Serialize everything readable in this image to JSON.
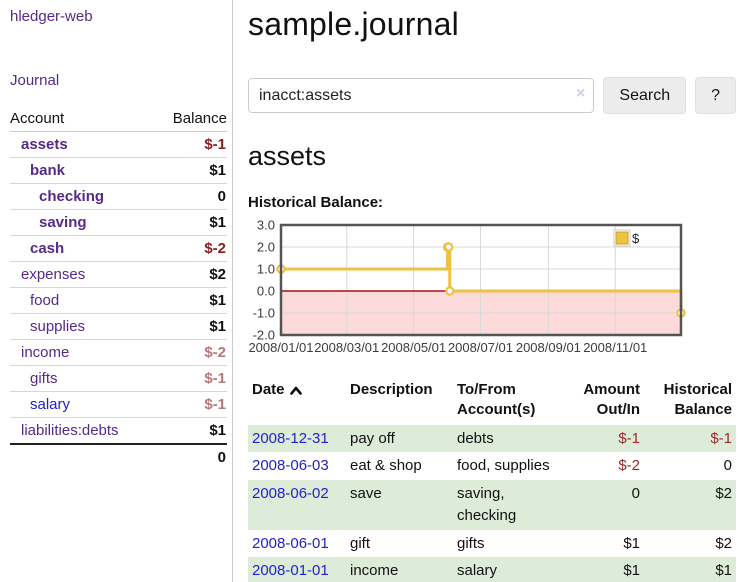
{
  "sidebar": {
    "app_title": "hledger-web",
    "nav": {
      "journal_label": "Journal"
    },
    "accounts_table": {
      "headers": {
        "account": "Account",
        "balance": "Balance"
      },
      "rows": [
        {
          "name": "assets",
          "indent": 0,
          "emphasis": true,
          "balance": "$-1",
          "balance_style": "neg-dark"
        },
        {
          "name": "bank",
          "indent": 1,
          "emphasis": true,
          "balance": "$1",
          "balance_style": "pos"
        },
        {
          "name": "checking",
          "indent": 2,
          "emphasis": true,
          "balance": "0",
          "balance_style": "pos"
        },
        {
          "name": "saving",
          "indent": 2,
          "emphasis": true,
          "balance": "$1",
          "balance_style": "pos"
        },
        {
          "name": "cash",
          "indent": 1,
          "emphasis": true,
          "balance": "$-2",
          "balance_style": "neg-dark"
        },
        {
          "name": "expenses",
          "indent": 0,
          "emphasis": false,
          "balance": "$2",
          "balance_style": "pos"
        },
        {
          "name": "food",
          "indent": 1,
          "emphasis": false,
          "balance": "$1",
          "balance_style": "pos"
        },
        {
          "name": "supplies",
          "indent": 1,
          "emphasis": false,
          "balance": "$1",
          "balance_style": "pos"
        },
        {
          "name": "income",
          "indent": 0,
          "emphasis": false,
          "balance": "$-2",
          "balance_style": "neg-light"
        },
        {
          "name": "gifts",
          "indent": 1,
          "emphasis": false,
          "balance": "$-1",
          "balance_style": "neg-light"
        },
        {
          "name": "salary",
          "indent": 1,
          "emphasis": false,
          "balance": "$-1",
          "balance_style": "neg-light",
          "link_color": "blue"
        },
        {
          "name": "liabilities:debts",
          "indent": 0,
          "emphasis": false,
          "balance": "$1",
          "balance_style": "pos"
        }
      ],
      "total": "0"
    }
  },
  "header": {
    "title": "sample.journal"
  },
  "search": {
    "query": "inacct:assets",
    "clear_icon": "×",
    "search_button": "Search",
    "help_button": "?"
  },
  "account_page": {
    "title": "assets",
    "chart_label": "Historical Balance:"
  },
  "chart_data": {
    "type": "line",
    "steps": true,
    "title": "Historical Balance:",
    "series": [
      {
        "name": "$",
        "color": "#edc240",
        "points": [
          [
            "2008-01-01",
            1
          ],
          [
            "2008-06-01",
            2
          ],
          [
            "2008-06-02",
            2
          ],
          [
            "2008-06-03",
            0
          ],
          [
            "2008-12-31",
            -1
          ]
        ]
      }
    ],
    "x_range": [
      "2008-01-01",
      "2008-12-31"
    ],
    "ylim": [
      -2,
      3
    ],
    "y_ticks": [
      {
        "v": 3,
        "label": "3.0"
      },
      {
        "v": 2,
        "label": "2.0"
      },
      {
        "v": 1,
        "label": "1.0"
      },
      {
        "v": 0,
        "label": "0.0"
      },
      {
        "v": -1,
        "label": "-1.0"
      },
      {
        "v": -2,
        "label": "-2.0"
      }
    ],
    "x_ticks": [
      {
        "date": "2008-01-01",
        "label": "2008/01/01"
      },
      {
        "date": "2008-03-01",
        "label": "2008/03/01"
      },
      {
        "date": "2008-05-01",
        "label": "2008/05/01"
      },
      {
        "date": "2008-07-01",
        "label": "2008/07/01"
      },
      {
        "date": "2008-09-01",
        "label": "2008/09/01"
      },
      {
        "date": "2008-11-01",
        "label": "2008/11/01"
      }
    ],
    "legend_label": "$",
    "legend_position": "top-right",
    "grid": true,
    "negative_fill": "#fcdada",
    "zero_line_color": "#a81111",
    "grid_color": "#d8d8d8",
    "border_color": "#545454"
  },
  "register_table": {
    "headers": {
      "date": "Date",
      "description": "Description",
      "accounts": "To/From Account(s)",
      "amount": "Amount Out/In",
      "balance": "Historical Balance"
    },
    "sort": {
      "column": "date",
      "direction": "ascending"
    },
    "rows": [
      {
        "date": "2008-12-31",
        "description": "pay off",
        "accounts": "debts",
        "amount": "$-1",
        "amount_neg": true,
        "balance": "$-1",
        "balance_neg": true
      },
      {
        "date": "2008-06-03",
        "description": "eat & shop",
        "accounts": "food, supplies",
        "amount": "$-2",
        "amount_neg": true,
        "balance": "0",
        "balance_neg": false
      },
      {
        "date": "2008-06-02",
        "description": "save",
        "accounts": "saving, checking",
        "amount": "0",
        "amount_neg": false,
        "balance": "$2",
        "balance_neg": false
      },
      {
        "date": "2008-06-01",
        "description": "gift",
        "accounts": "gifts",
        "amount": "$1",
        "amount_neg": false,
        "balance": "$2",
        "balance_neg": false
      },
      {
        "date": "2008-01-01",
        "description": "income",
        "accounts": "salary",
        "amount": "$1",
        "amount_neg": false,
        "balance": "$1",
        "balance_neg": false
      }
    ]
  },
  "colors": {
    "link_purple": "#552a88",
    "link_blue": "#2222cc",
    "negative_dark": "#8b1c1c",
    "negative_light": "#b87878",
    "negative_table": "#9e2a2a",
    "row_stripe_green": "#ddecd9",
    "chart_line_yellow": "#edc240"
  }
}
